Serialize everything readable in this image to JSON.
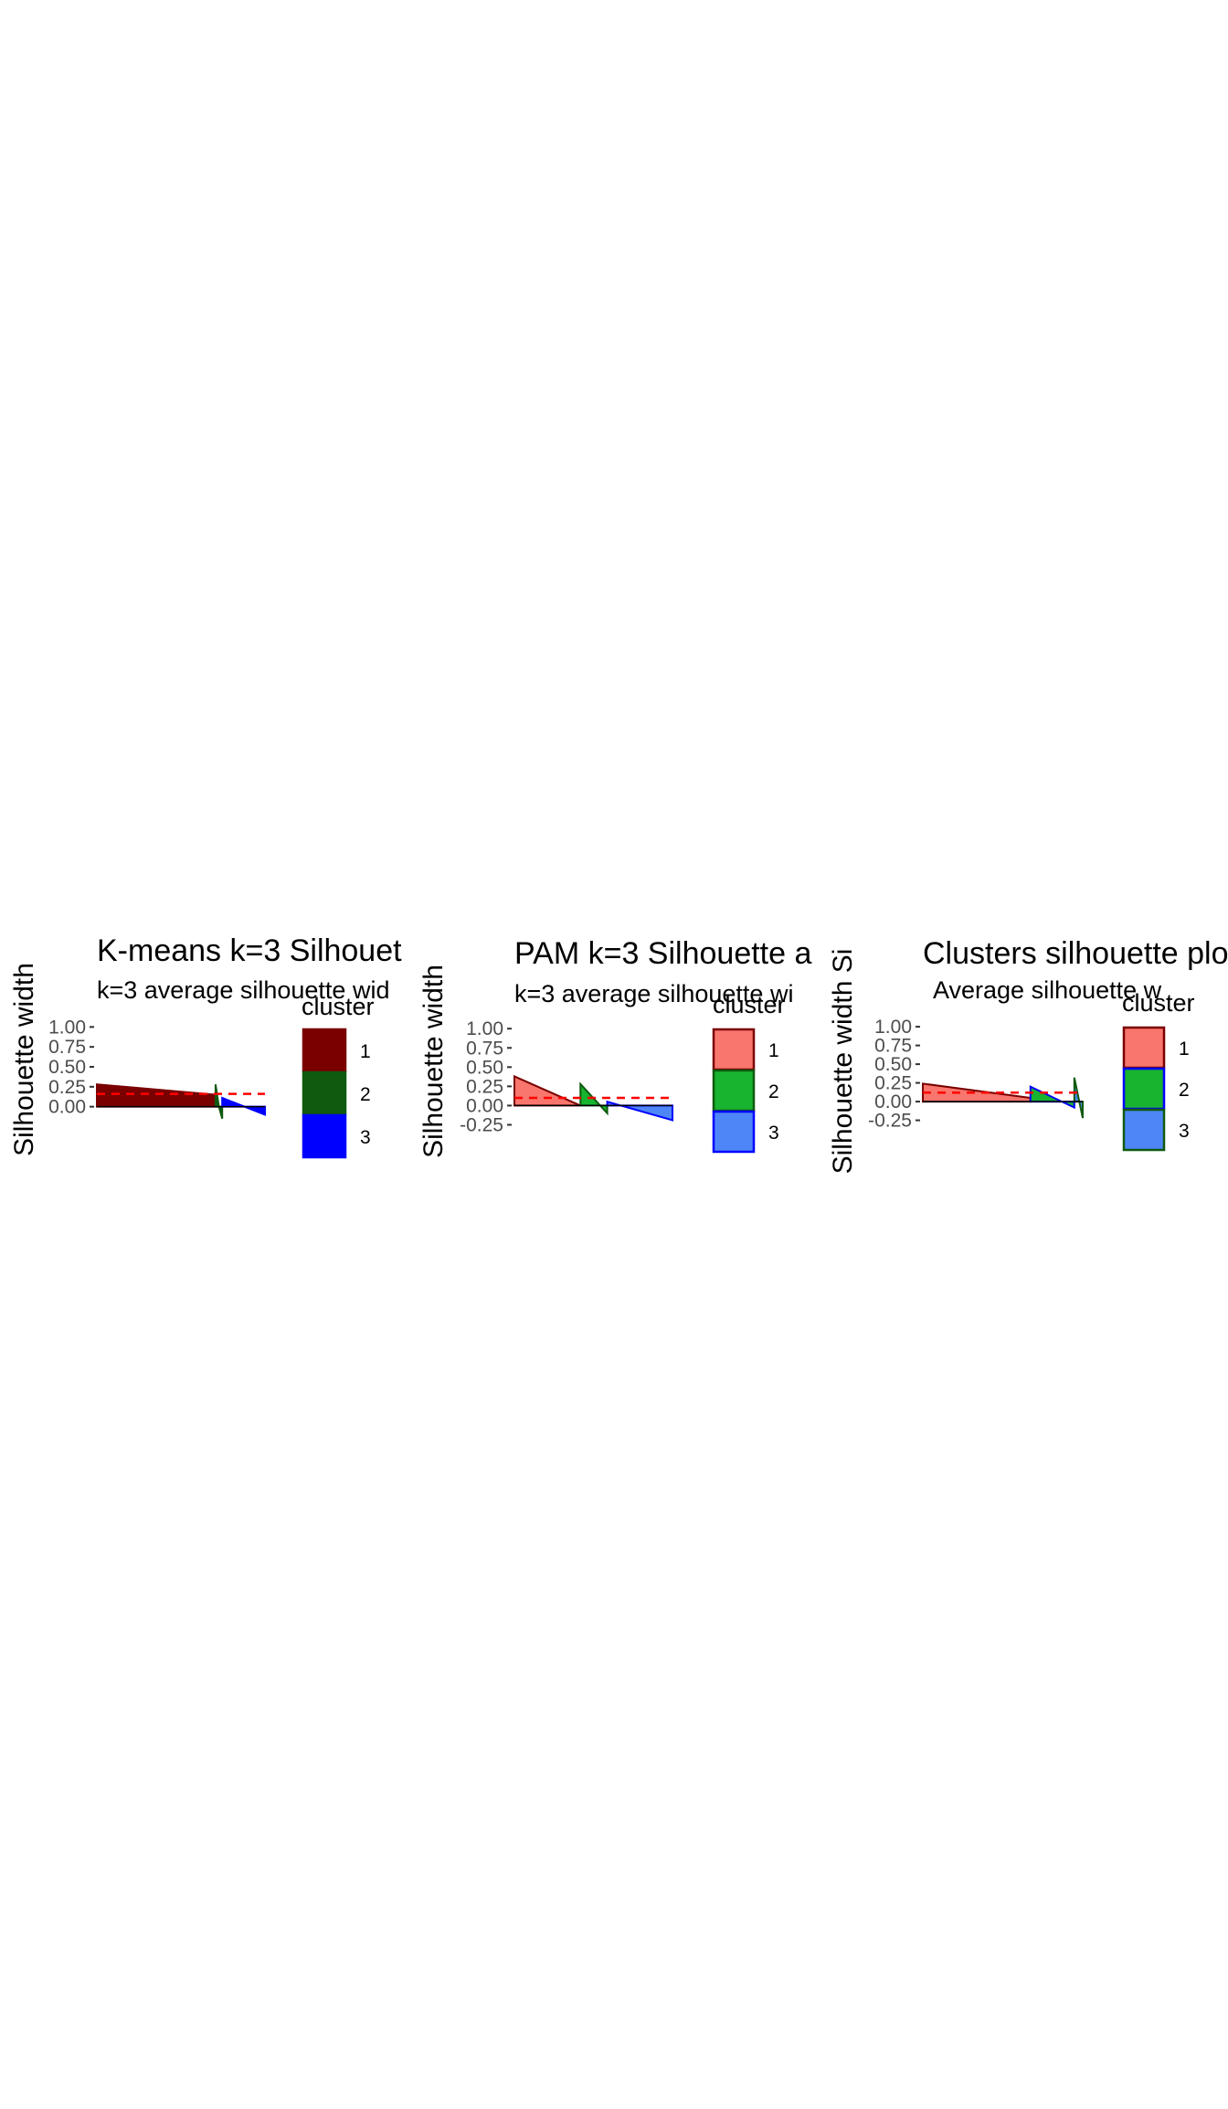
{
  "chart_data": [
    {
      "type": "area",
      "title": "K-means k=3 Silhouet",
      "subtitle": "k=3 average silhouette wid",
      "xlabel": "",
      "ylabel": "Silhouette width",
      "y_ticks": [
        "1.00",
        "0.75",
        "0.50",
        "0.25",
        "0.00"
      ],
      "ylim": [
        -0.05,
        1.05
      ],
      "grid": false,
      "average_line": 0.16,
      "legend": {
        "title": "cluster",
        "position": "right",
        "labels": [
          "1",
          "2",
          "3"
        ]
      },
      "colors": {
        "fill": [
          "#7A0000",
          "#0F5A0F",
          "#0000FF"
        ],
        "outline": [
          "#7A0000",
          "#0F5A0F",
          "#0000FF"
        ],
        "average": "#FF0000"
      },
      "series": [
        {
          "name": "1",
          "n": 125,
          "values": [
            0.28,
            0.15
          ]
        },
        {
          "name": "2",
          "n": 7,
          "values": [
            0.28,
            0.0,
            -0.15
          ]
        },
        {
          "name": "3",
          "n": 45,
          "values": [
            0.11,
            -0.1
          ]
        }
      ]
    },
    {
      "type": "area",
      "title": "PAM k=3 Silhouette a",
      "subtitle": "k=3 average silhouette wi",
      "xlabel": "",
      "ylabel": "Silhouette width",
      "y_ticks": [
        "1.00",
        "0.75",
        "0.50",
        "0.25",
        "0.00",
        "-0.25"
      ],
      "ylim": [
        -0.28,
        1.05
      ],
      "grid": false,
      "average_line": 0.1,
      "legend": {
        "title": "cluster",
        "position": "right",
        "labels": [
          "1",
          "2",
          "3"
        ]
      },
      "colors": {
        "fill": [
          "#F8766D",
          "#18B32F",
          "#4F86F7"
        ],
        "outline": [
          "#7A0000",
          "#0F5A0F",
          "#0000FF"
        ],
        "average": "#FF0000"
      },
      "series": [
        {
          "name": "1",
          "n": 74,
          "values": [
            0.38,
            0.0
          ]
        },
        {
          "name": "2",
          "n": 30,
          "values": [
            0.28,
            -0.1
          ]
        },
        {
          "name": "3",
          "n": 73,
          "values": [
            0.05,
            -0.19
          ]
        }
      ]
    },
    {
      "type": "area",
      "title": "Clusters silhouette plo",
      "subtitle": "Average silhouette w",
      "xlabel": "",
      "ylabel": "Silhouette width Si",
      "y_ticks": [
        "1.00",
        "0.75",
        "0.50",
        "0.25",
        "0.00",
        "-0.25"
      ],
      "ylim": [
        -0.28,
        1.05
      ],
      "grid": false,
      "average_line": 0.12,
      "legend": {
        "title": "cluster",
        "position": "right",
        "labels": [
          "1",
          "2",
          "3"
        ]
      },
      "colors": {
        "fill": [
          "#F8766D",
          "#18B32F",
          "#4F86F7"
        ],
        "outline": [
          "#7A0000",
          "#0000FF",
          "#0F5A0F"
        ],
        "average": "#FF0000"
      },
      "series": [
        {
          "name": "1",
          "n": 103,
          "values": [
            0.24,
            0.05
          ]
        },
        {
          "name": "3",
          "n": 42,
          "values": [
            0.2,
            -0.08
          ]
        },
        {
          "name": "2",
          "n": 8,
          "values": [
            0.32,
            -0.22
          ]
        }
      ]
    }
  ]
}
